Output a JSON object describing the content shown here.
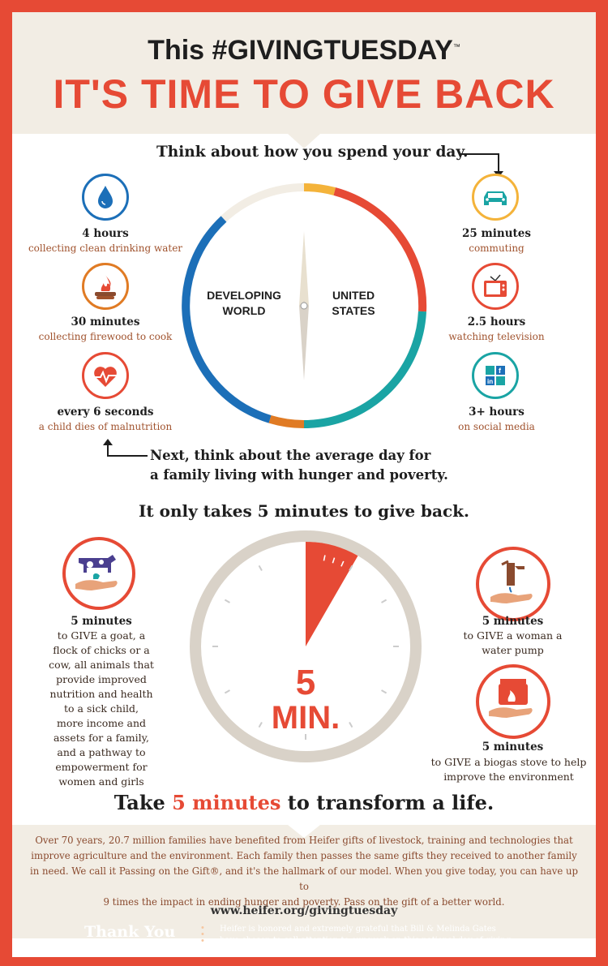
{
  "header": {
    "line1_this": "This",
    "line1_hash": "#GIVINGTUESDAY",
    "tm": "™",
    "line2": "IT'S TIME TO GIVE BACK"
  },
  "section1": {
    "heading": "Think about how you spend your day.",
    "next_line1": "Next, think about the average day for",
    "next_line2": "a family living with hunger and poverty.",
    "clock_left": [
      "DEVELOPING",
      "WORLD"
    ],
    "clock_right": [
      "UNITED",
      "STATES"
    ],
    "left_items": [
      {
        "icon": "water-drop-icon",
        "main": "4 hours",
        "sub": "collecting clean drinking water"
      },
      {
        "icon": "firewood-icon",
        "main": "30 minutes",
        "sub": "collecting firewood to cook"
      },
      {
        "icon": "heartbeat-icon",
        "main": "every 6 seconds",
        "sub": "a child dies of malnutrition"
      }
    ],
    "right_items": [
      {
        "icon": "car-icon",
        "main": "25 minutes",
        "sub": "commuting"
      },
      {
        "icon": "television-icon",
        "main": "2.5 hours",
        "sub": "watching television"
      },
      {
        "icon": "social-media-icon",
        "main": "3+ hours",
        "sub": "on social media"
      }
    ]
  },
  "section2": {
    "heading": "It only takes 5 minutes to give back.",
    "timer_value": "5",
    "timer_unit": "MIN.",
    "timer_fraction": 0.0833,
    "left_item": {
      "icon": "cow-and-chicken-in-hand-icon",
      "main": "5 minutes",
      "lines": [
        "to GIVE a goat, a",
        "flock of chicks or a",
        "cow, all animals that",
        "provide improved",
        "nutrition and health",
        "to a sick child,",
        "more income and",
        "assets for a family,",
        "and a pathway to",
        "empowerment for",
        "women and girls"
      ]
    },
    "right_items": [
      {
        "icon": "water-pump-icon",
        "main": "5 minutes",
        "lines": [
          "to GIVE a woman a",
          "water pump"
        ]
      },
      {
        "icon": "biogas-stove-icon",
        "main": "5 minutes",
        "lines": [
          "to GIVE a biogas stove to help",
          "improve the environment"
        ]
      }
    ],
    "cta_pre": "Take ",
    "cta_accent": "5 minutes",
    "cta_post": " to transform a life."
  },
  "footer": {
    "lines": [
      "Over 70 years, 20.7 million families have benefited from Heifer gifts of livestock, training and technologies that",
      "improve agriculture and the environment. Each family then passes the same gifts they received to another family",
      "in need. We call it Passing on the Gift®, and it's the hallmark of our model. When you give today, you can have up to",
      "9 times the impact in ending hunger and poverty. Pass on the gift of a better world."
    ],
    "url": "www.heifer.org/givingtuesday",
    "thanks": "Thank You",
    "note_line1": "Heifer is honored and extremely grateful that Bill & Melinda Gates",
    "note_line2": "have chosen to call attention to our work on this national day of giving."
  },
  "colors": {
    "red": "#e64a35",
    "blue": "#1c6fb8",
    "orange": "#e07b24",
    "yellow": "#f4b33a",
    "teal": "#1aa4a4",
    "beige": "#f2ede4",
    "ring": "#d9d2c8"
  }
}
